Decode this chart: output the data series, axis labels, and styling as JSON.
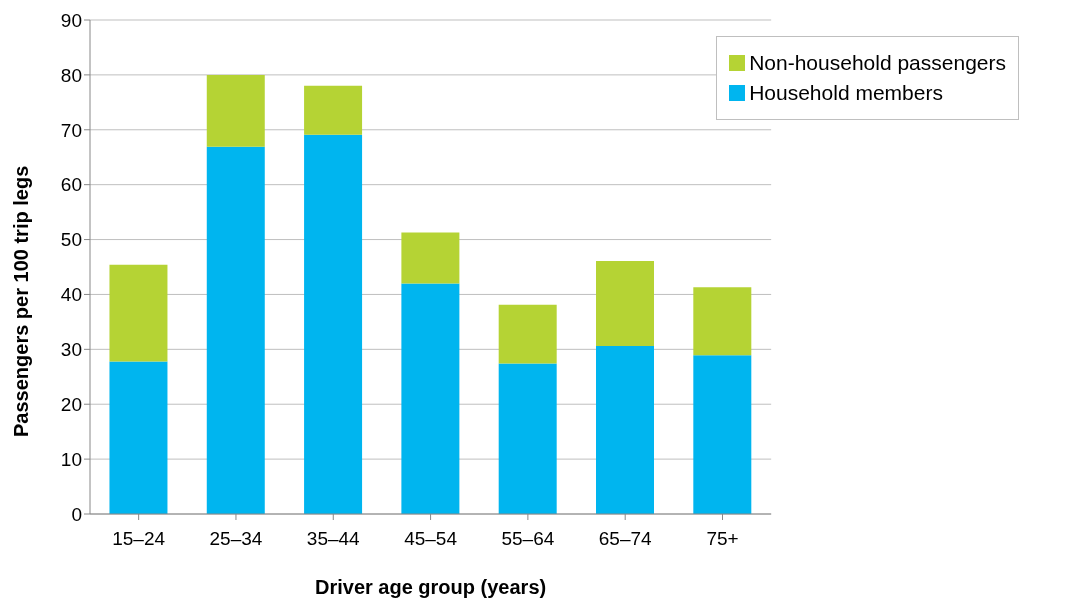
{
  "chart_data": {
    "type": "bar",
    "stacked": true,
    "xlabel": "Driver age group (years)",
    "ylabel": "Passengers  per 100 trip legs",
    "categories": [
      "15–24",
      "25–34",
      "35–44",
      "45–54",
      "55–64",
      "65–74",
      "75+"
    ],
    "series": [
      {
        "name": "Household members",
        "color": "#00b5ef",
        "values": [
          27.8,
          66.9,
          69.1,
          42.0,
          27.4,
          30.6,
          28.9
        ]
      },
      {
        "name": "Non-household passengers",
        "color": "#b5d334",
        "values": [
          17.6,
          13.1,
          8.9,
          9.3,
          10.7,
          15.5,
          12.4
        ]
      }
    ],
    "ylim": [
      0,
      90
    ],
    "yticks": [
      0,
      10,
      20,
      30,
      40,
      50,
      60,
      70,
      80,
      90
    ],
    "grid": "y",
    "legend": "top right"
  }
}
